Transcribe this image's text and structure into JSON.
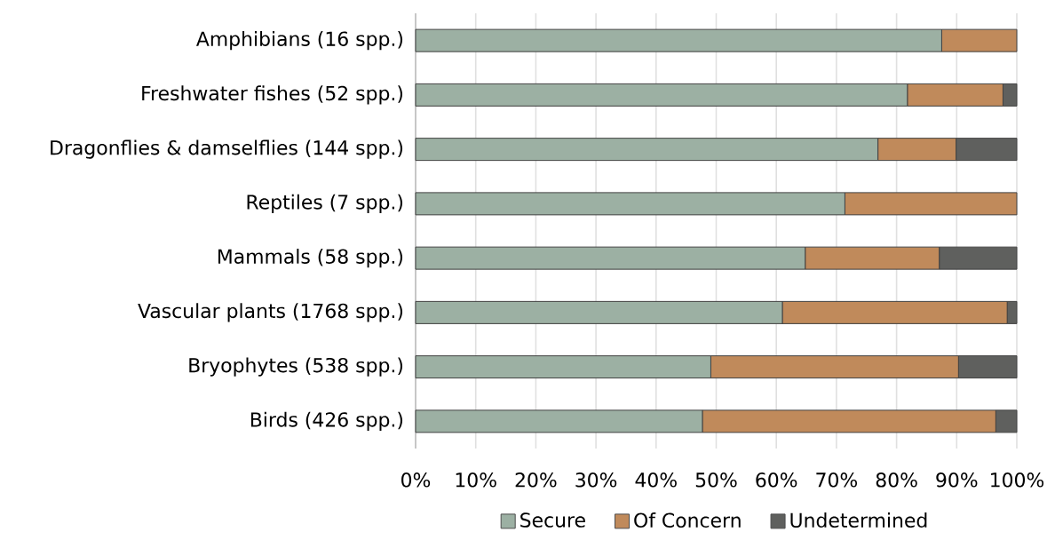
{
  "chart_data": {
    "type": "bar",
    "orientation": "horizontal",
    "stacked": true,
    "categories": [
      "Amphibians (16 spp.)",
      "Freshwater fishes (52 spp.)",
      "Dragonflies & damselflies (144 spp.)",
      "Reptiles (7 spp.)",
      "Mammals (58 spp.)",
      "Vascular plants (1768 spp.)",
      "Bryophytes (538 spp.)",
      "Birds (426 spp.)"
    ],
    "series": [
      {
        "name": "Secure",
        "color": "#9cb0a3",
        "values": [
          87.5,
          81.8,
          76.9,
          71.4,
          64.8,
          61.0,
          49.1,
          47.7
        ]
      },
      {
        "name": "Of Concern",
        "color": "#c08a5b",
        "values": [
          12.5,
          15.9,
          13.0,
          28.6,
          22.3,
          37.4,
          41.2,
          48.8
        ]
      },
      {
        "name": "Undetermined",
        "color": "#5f605e",
        "values": [
          null,
          2.3,
          10.1,
          null,
          12.9,
          1.6,
          9.7,
          3.5
        ]
      }
    ],
    "xlim": [
      0,
      100
    ],
    "xticks": [
      {
        "value": 0,
        "label": "0%"
      },
      {
        "value": 10,
        "label": "10%"
      },
      {
        "value": 20,
        "label": "20%"
      },
      {
        "value": 30,
        "label": "30%"
      },
      {
        "value": 40,
        "label": "40%"
      },
      {
        "value": 50,
        "label": "50%"
      },
      {
        "value": 60,
        "label": "60%"
      },
      {
        "value": 70,
        "label": "70%"
      },
      {
        "value": 80,
        "label": "80%"
      },
      {
        "value": 90,
        "label": "90%"
      },
      {
        "value": 100,
        "label": "100%"
      }
    ],
    "grid": "x",
    "legend": "bottom"
  }
}
